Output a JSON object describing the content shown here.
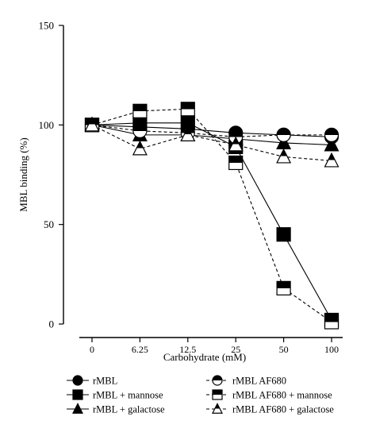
{
  "chart_data": {
    "type": "line",
    "xlabel": "Carbohydrate (mM)",
    "ylabel": "MBL binding (%)",
    "ylim": [
      0,
      150
    ],
    "yticks": [
      "0",
      "50",
      "100",
      "150"
    ],
    "categories": [
      "0",
      "6.25",
      "12.5",
      "25",
      "50",
      "100"
    ],
    "grid": false,
    "legend_position": "bottom",
    "series": [
      {
        "name": "rMBL",
        "marker": "circle",
        "fill": "solid",
        "dash": false,
        "values": [
          100,
          99,
          98,
          96,
          95,
          94
        ]
      },
      {
        "name": "rMBL + mannose",
        "marker": "square",
        "fill": "solid",
        "dash": false,
        "values": [
          100,
          101,
          101,
          89,
          45,
          2
        ]
      },
      {
        "name": "rMBL + galactose",
        "marker": "triangle",
        "fill": "solid",
        "dash": false,
        "values": [
          100,
          95,
          95,
          93,
          91,
          90
        ]
      },
      {
        "name": "rMBL  AF680",
        "marker": "circle",
        "fill": "half",
        "dash": true,
        "values": [
          100,
          97,
          96,
          94,
          95,
          95
        ]
      },
      {
        "name": "rMBL  AF680 + mannose",
        "marker": "square",
        "fill": "half",
        "dash": true,
        "values": [
          100,
          107,
          108,
          81,
          18,
          1
        ]
      },
      {
        "name": "rMBL  AF680 + galactose",
        "marker": "triangle",
        "fill": "half",
        "dash": true,
        "values": [
          100,
          88,
          95,
          90,
          84,
          82
        ]
      }
    ]
  }
}
